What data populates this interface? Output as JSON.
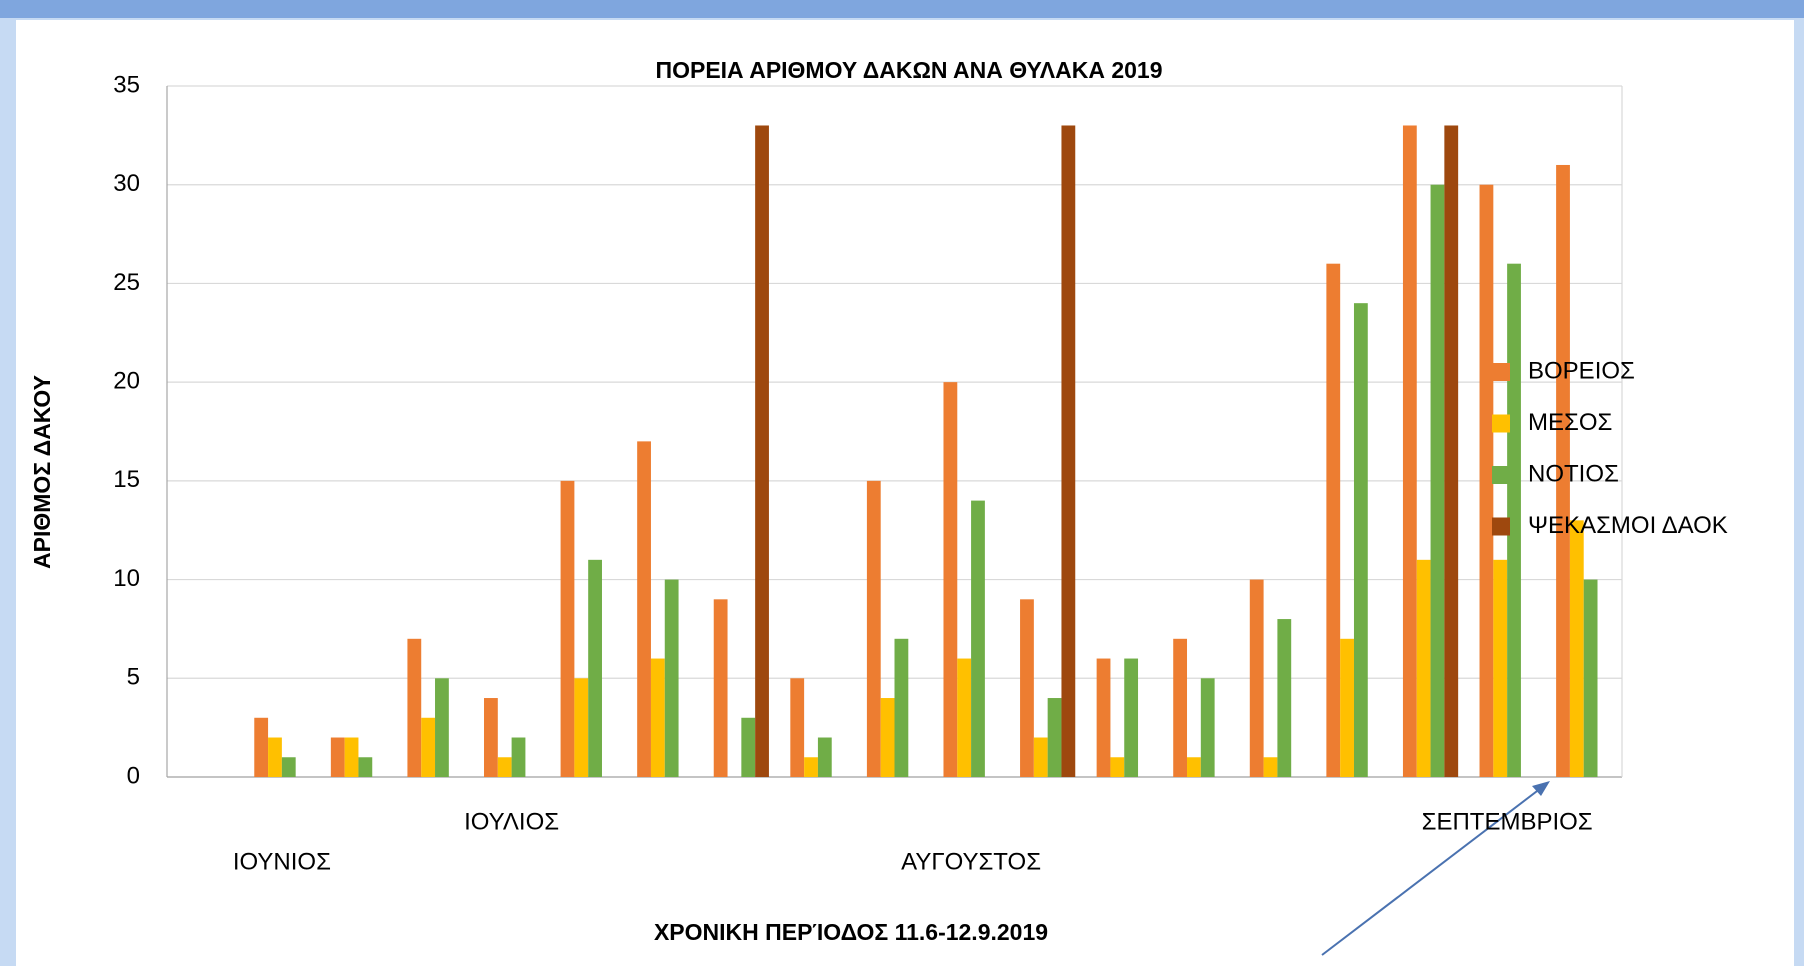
{
  "chart_data": {
    "type": "bar",
    "title": "ΠΟΡΕΙΑ ΑΡΙΘΜΟΥ ΔΑΚΩΝ ΑΝΑ ΘΥΛΑΚΑ 2019",
    "x_label": "ΧΡΟΝΙΚΗ ΠΕΡΊΟΔΟΣ 11.6-12.9.2019",
    "y_label": "ΑΡΙΘΜΟΣ ΔΑΚΟΥ",
    "categories": [
      null,
      "ΙΟΥΝΙΟΣ",
      null,
      null,
      "ΙΟΥΛΙΟΣ",
      null,
      null,
      null,
      null,
      null,
      "ΑΥΓΟΥΣΤΟΣ",
      null,
      null,
      null,
      null,
      null,
      null,
      "ΣΕΠΤΕΜΒΡΙΟΣ",
      null
    ],
    "series": [
      {
        "name": "ΒΟΡΕΙΟΣ",
        "color": "#ed7d31",
        "values": [
          null,
          3,
          2,
          7,
          4,
          15,
          17,
          9,
          5,
          15,
          20,
          9,
          6,
          7,
          10,
          26,
          33,
          30,
          31
        ]
      },
      {
        "name": "ΜΕΣΟΣ",
        "color": "#ffc000",
        "values": [
          null,
          2,
          2,
          3,
          1,
          5,
          6,
          null,
          1,
          4,
          6,
          2,
          1,
          1,
          1,
          7,
          11,
          11,
          13
        ]
      },
      {
        "name": "ΝΟΤΙΟΣ",
        "color": "#70ad47",
        "values": [
          null,
          1,
          1,
          5,
          2,
          11,
          10,
          3,
          2,
          7,
          14,
          4,
          6,
          5,
          8,
          24,
          30,
          26,
          10
        ]
      },
      {
        "name": "ΨΕΚΑΣΜΟΙ ΔΑΟΚ",
        "color": "#9e480e",
        "values": [
          null,
          null,
          null,
          null,
          null,
          null,
          null,
          33,
          null,
          null,
          null,
          33,
          null,
          null,
          null,
          null,
          33,
          null,
          null
        ]
      }
    ],
    "ylim": [
      0,
      35
    ],
    "yticks": [
      0,
      5,
      10,
      15,
      20,
      25,
      30,
      35
    ],
    "grid": true,
    "legend": "right"
  }
}
